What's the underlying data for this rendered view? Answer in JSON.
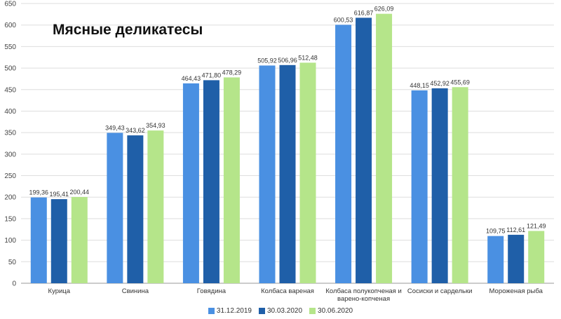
{
  "chart_data": {
    "type": "bar",
    "title": "Мясные деликатесы",
    "xlabel": "",
    "ylabel": "",
    "ylim": [
      0,
      650
    ],
    "yticks": [
      0,
      50,
      100,
      150,
      200,
      250,
      300,
      350,
      400,
      450,
      500,
      550,
      600,
      650
    ],
    "grid": true,
    "legend_position": "bottom",
    "categories": [
      [
        "Курица"
      ],
      [
        "Свинина"
      ],
      [
        "Говядина"
      ],
      [
        "Колбаса вареная"
      ],
      [
        "Колбаса полукопченая и",
        "варено-копченая"
      ],
      [
        "Сосиски и сардельки"
      ],
      [
        "Мороженая рыба"
      ]
    ],
    "series": [
      {
        "name": "31.12.2019",
        "color": "#4a90e2",
        "values": [
          199.36,
          349.43,
          464.43,
          505.92,
          600.53,
          448.15,
          109.75
        ],
        "labels": [
          "199,36",
          "349,43",
          "464,43",
          "505,92",
          "600,53",
          "448,15",
          "109,75"
        ]
      },
      {
        "name": "30.03.2020",
        "color": "#1f5fa8",
        "values": [
          195.41,
          343.62,
          471.8,
          506.96,
          616.87,
          452.92,
          112.61
        ],
        "labels": [
          "195,41",
          "343,62",
          "471,80",
          "506,96",
          "616,87",
          "452,92",
          "112,61"
        ]
      },
      {
        "name": "30.06.2020",
        "color": "#b5e58a",
        "values": [
          200.44,
          354.93,
          478.29,
          512.48,
          626.09,
          455.69,
          121.49
        ],
        "labels": [
          "200,44",
          "354,93",
          "478,29",
          "512,48",
          "626,09",
          "455,69",
          "121,49"
        ]
      }
    ]
  }
}
